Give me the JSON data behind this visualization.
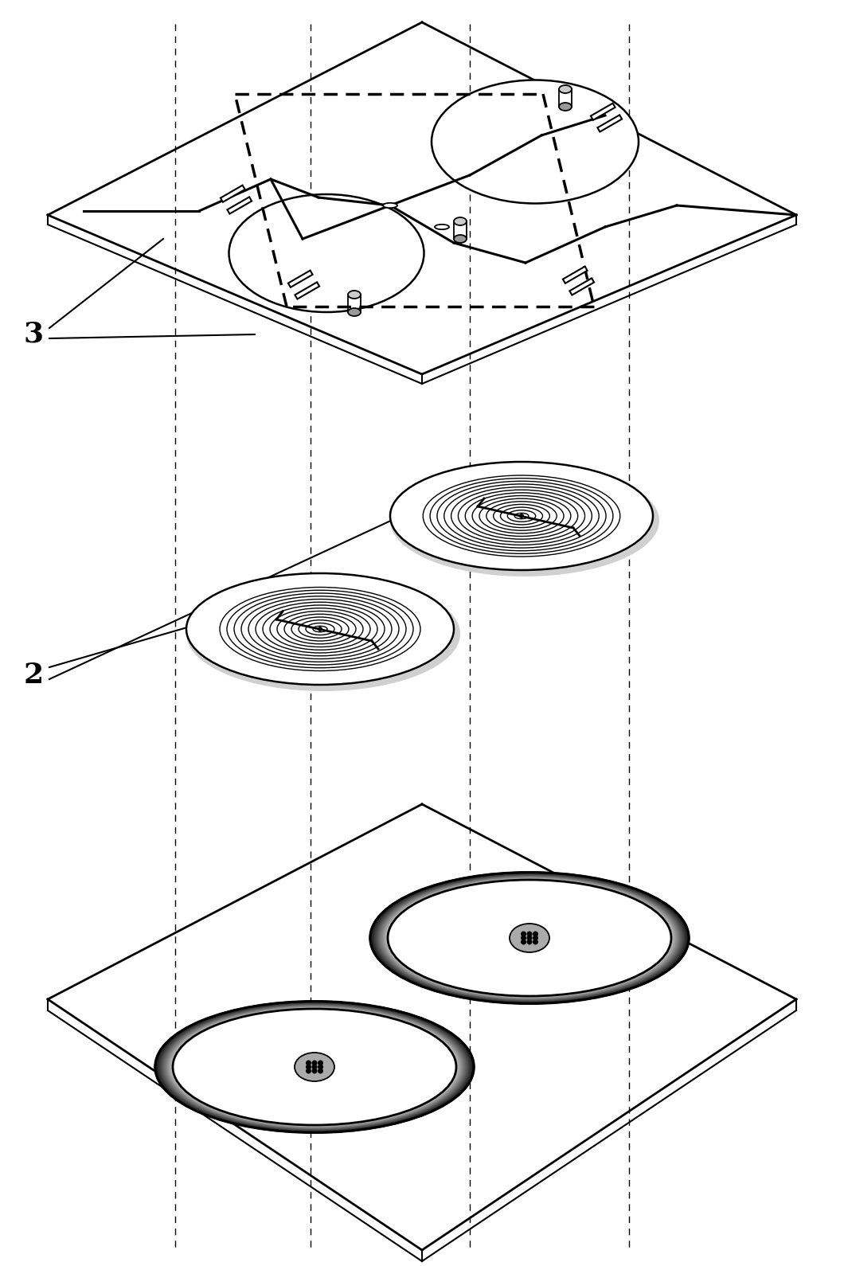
{
  "bg_color": "#ffffff",
  "fig_width": 10.6,
  "fig_height": 15.9,
  "label_2": "2",
  "label_3": "3"
}
